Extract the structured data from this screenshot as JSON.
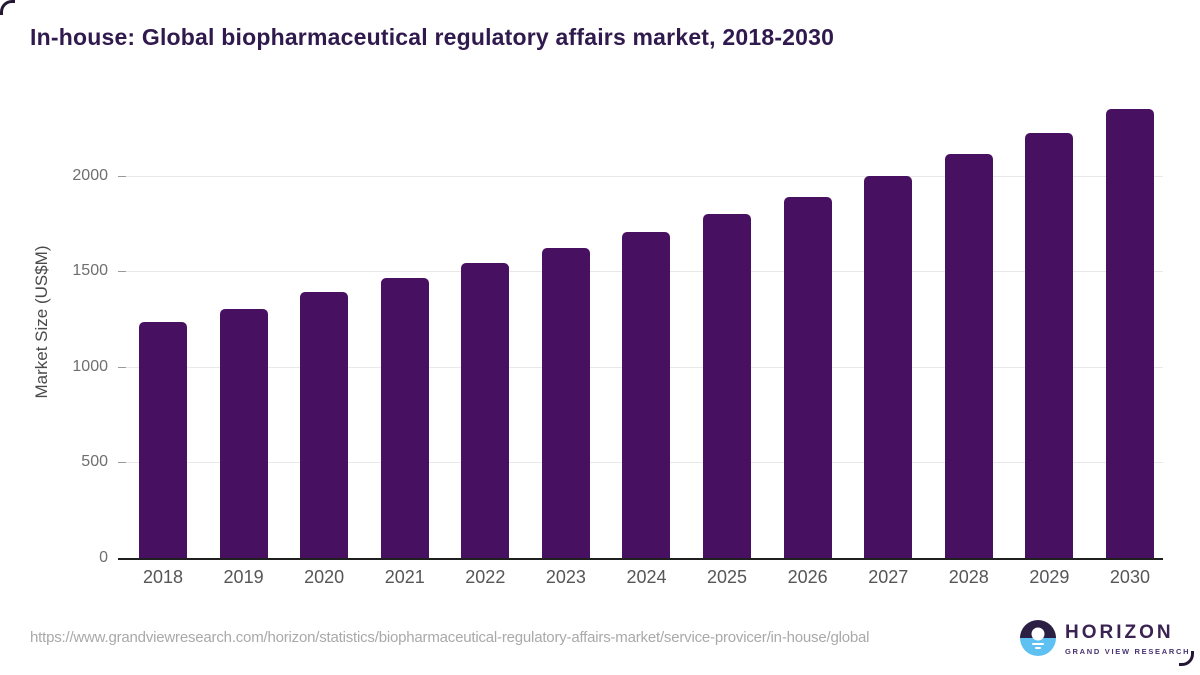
{
  "title": "In-house: Global biopharmaceutical regulatory affairs market, 2018-2030",
  "chart_data": {
    "type": "bar",
    "title": "In-house: Global biopharmaceutical regulatory affairs market, 2018-2030",
    "xlabel": "",
    "ylabel": "Market Size (US$M)",
    "categories": [
      "2018",
      "2019",
      "2020",
      "2021",
      "2022",
      "2023",
      "2024",
      "2025",
      "2026",
      "2027",
      "2028",
      "2029",
      "2030"
    ],
    "values": [
      1235,
      1300,
      1390,
      1465,
      1540,
      1620,
      1705,
      1800,
      1890,
      2000,
      2110,
      2220,
      2350
    ],
    "yticks": [
      0,
      500,
      1000,
      1500,
      2000
    ],
    "ylim": [
      0,
      2430
    ],
    "grid": true,
    "legend": "none"
  },
  "footer": {
    "source_url": "https://www.grandviewresearch.com/horizon/statistics/biopharmaceutical-regulatory-affairs-market/service-provicer/in-house/global"
  },
  "logo": {
    "name": "HORIZON",
    "subtitle": "GRAND VIEW RESEARCH",
    "icon": "horizon-sun-circle-icon"
  },
  "colors": {
    "title": "#301a4d",
    "bar": "#481060",
    "gridline": "#e8e8e8",
    "axis_line": "#1f1f1f",
    "y_tick_label": "#6f6f6f",
    "x_tick_label": "#565658",
    "y_axis_title": "#4a4a4a",
    "url_text": "#a9a9a9",
    "logo_dark": "#2b2044",
    "logo_blue": "#5ec1f2",
    "logo_text": "#3a2353",
    "logo_subtext": "#473472",
    "frame": "#241733"
  }
}
